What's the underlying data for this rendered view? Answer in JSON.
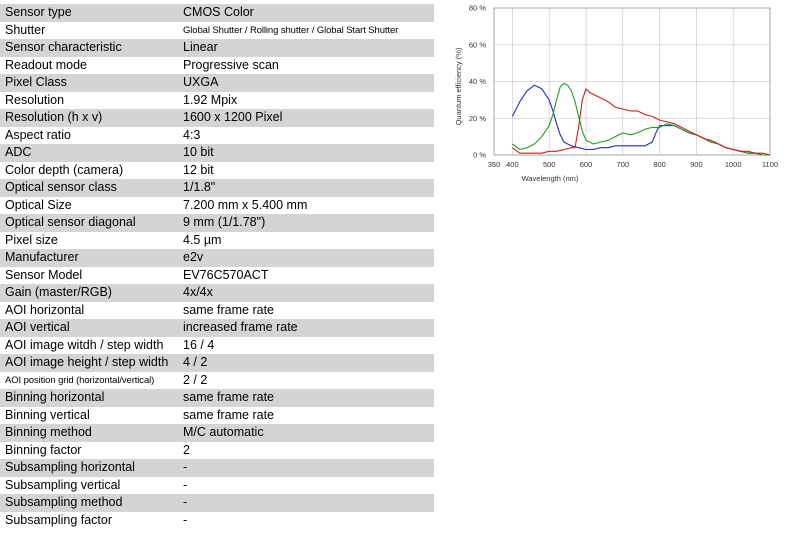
{
  "specs": [
    {
      "key": "Sensor type",
      "value": "CMOS Color"
    },
    {
      "key": "Shutter",
      "value": "Global Shutter / Rolling shutter / Global Start Shutter"
    },
    {
      "key": "Sensor characteristic",
      "value": "Linear"
    },
    {
      "key": "Readout mode",
      "value": "Progressive scan"
    },
    {
      "key": "Pixel Class",
      "value": "UXGA"
    },
    {
      "key": "Resolution",
      "value": "1.92 Mpix"
    },
    {
      "key": "Resolution (h x v)",
      "value": "1600 x 1200 Pixel"
    },
    {
      "key": "Aspect ratio",
      "value": "4:3"
    },
    {
      "key": "ADC",
      "value": "10 bit"
    },
    {
      "key": "Color depth (camera)",
      "value": "12 bit"
    },
    {
      "key": "Optical sensor class",
      "value": "1/1.8\""
    },
    {
      "key": "Optical Size",
      "value": "7.200 mm x 5.400 mm"
    },
    {
      "key": "Optical sensor diagonal",
      "value": "9 mm (1/1.78\")"
    },
    {
      "key": "Pixel size",
      "value": "4.5 µm"
    },
    {
      "key": "Manufacturer",
      "value": "e2v"
    },
    {
      "key": "Sensor Model",
      "value": "EV76C570ACT"
    },
    {
      "key": "Gain (master/RGB)",
      "value": "4x/4x"
    },
    {
      "key": "AOI horizontal",
      "value": "same frame rate"
    },
    {
      "key": "AOI vertical",
      "value": "increased frame rate"
    },
    {
      "key": "AOI image witdh / step width",
      "value": "16 / 4"
    },
    {
      "key": "AOI image height / step width",
      "value": "4 / 2"
    },
    {
      "key": "AOI position grid (horizontal/vertical)",
      "value": "2 / 2"
    },
    {
      "key": "Binning horizontal",
      "value": "same frame rate"
    },
    {
      "key": "Binning vertical",
      "value": "same frame rate"
    },
    {
      "key": "Binning method",
      "value": "M/C automatic"
    },
    {
      "key": "Binning factor",
      "value": "2"
    },
    {
      "key": "Subsampling horizontal",
      "value": "-"
    },
    {
      "key": "Subsampling vertical",
      "value": "-"
    },
    {
      "key": "Subsampling method",
      "value": "-"
    },
    {
      "key": "Subsampling factor",
      "value": "-"
    }
  ],
  "chart_data": {
    "type": "line",
    "xlabel": "Wavelength (nm)",
    "ylabel": "Quantum efficiency (%)",
    "xlim": [
      350,
      1100
    ],
    "ylim": [
      0,
      80
    ],
    "xticks": [
      350,
      400,
      500,
      600,
      700,
      800,
      900,
      1000,
      1100
    ],
    "yticks": [
      0,
      20,
      40,
      60,
      80
    ],
    "ytick_labels": [
      "0 %",
      "20 %",
      "40 %",
      "60 %",
      "80 %"
    ],
    "grid": true,
    "series": [
      {
        "color": "#1f2fbf",
        "points": [
          [
            400,
            21
          ],
          [
            420,
            29
          ],
          [
            440,
            35
          ],
          [
            460,
            38
          ],
          [
            480,
            36
          ],
          [
            500,
            30
          ],
          [
            510,
            24
          ],
          [
            520,
            17
          ],
          [
            530,
            11
          ],
          [
            540,
            7
          ],
          [
            560,
            5
          ],
          [
            580,
            4
          ],
          [
            600,
            3
          ],
          [
            620,
            3
          ],
          [
            640,
            4
          ],
          [
            660,
            4
          ],
          [
            680,
            5
          ],
          [
            700,
            5
          ],
          [
            720,
            5
          ],
          [
            740,
            5
          ],
          [
            760,
            5
          ],
          [
            780,
            7
          ],
          [
            790,
            12
          ],
          [
            800,
            16
          ],
          [
            810,
            16
          ],
          [
            820,
            16
          ],
          [
            840,
            16
          ],
          [
            860,
            14
          ],
          [
            880,
            12
          ],
          [
            900,
            11
          ],
          [
            920,
            9
          ],
          [
            940,
            7
          ],
          [
            960,
            6
          ],
          [
            980,
            4
          ],
          [
            1000,
            3
          ],
          [
            1020,
            2
          ],
          [
            1040,
            1
          ],
          [
            1060,
            1
          ],
          [
            1080,
            0
          ],
          [
            1100,
            0
          ]
        ]
      },
      {
        "color": "#1f9f1f",
        "points": [
          [
            400,
            6
          ],
          [
            420,
            3
          ],
          [
            440,
            4
          ],
          [
            460,
            6
          ],
          [
            480,
            10
          ],
          [
            500,
            16
          ],
          [
            510,
            22
          ],
          [
            520,
            30
          ],
          [
            530,
            37
          ],
          [
            540,
            39
          ],
          [
            550,
            38
          ],
          [
            560,
            35
          ],
          [
            570,
            29
          ],
          [
            580,
            21
          ],
          [
            590,
            13
          ],
          [
            600,
            8
          ],
          [
            620,
            6
          ],
          [
            640,
            7
          ],
          [
            660,
            8
          ],
          [
            680,
            10
          ],
          [
            700,
            12
          ],
          [
            720,
            11
          ],
          [
            740,
            12
          ],
          [
            760,
            14
          ],
          [
            780,
            15
          ],
          [
            800,
            15
          ],
          [
            820,
            17
          ],
          [
            840,
            16
          ],
          [
            860,
            14
          ],
          [
            880,
            12
          ],
          [
            900,
            11
          ],
          [
            920,
            9
          ],
          [
            940,
            7
          ],
          [
            960,
            6
          ],
          [
            980,
            4
          ],
          [
            1000,
            3
          ],
          [
            1020,
            2
          ],
          [
            1040,
            1
          ],
          [
            1060,
            1
          ],
          [
            1080,
            0
          ],
          [
            1100,
            0
          ]
        ]
      },
      {
        "color": "#cf1f1f",
        "points": [
          [
            400,
            4
          ],
          [
            420,
            1
          ],
          [
            440,
            1
          ],
          [
            460,
            1
          ],
          [
            480,
            1
          ],
          [
            500,
            2
          ],
          [
            520,
            2
          ],
          [
            540,
            3
          ],
          [
            560,
            4
          ],
          [
            570,
            4
          ],
          [
            580,
            15
          ],
          [
            590,
            30
          ],
          [
            600,
            36
          ],
          [
            610,
            34
          ],
          [
            620,
            33
          ],
          [
            640,
            31
          ],
          [
            660,
            29
          ],
          [
            680,
            26
          ],
          [
            700,
            25
          ],
          [
            720,
            24
          ],
          [
            740,
            24
          ],
          [
            760,
            22
          ],
          [
            780,
            21
          ],
          [
            800,
            19
          ],
          [
            820,
            18
          ],
          [
            840,
            17
          ],
          [
            860,
            15
          ],
          [
            880,
            13
          ],
          [
            900,
            11
          ],
          [
            920,
            9
          ],
          [
            940,
            8
          ],
          [
            960,
            6
          ],
          [
            980,
            4
          ],
          [
            1000,
            3
          ],
          [
            1020,
            2
          ],
          [
            1040,
            2
          ],
          [
            1060,
            1
          ],
          [
            1080,
            1
          ],
          [
            1100,
            0
          ]
        ]
      }
    ]
  }
}
